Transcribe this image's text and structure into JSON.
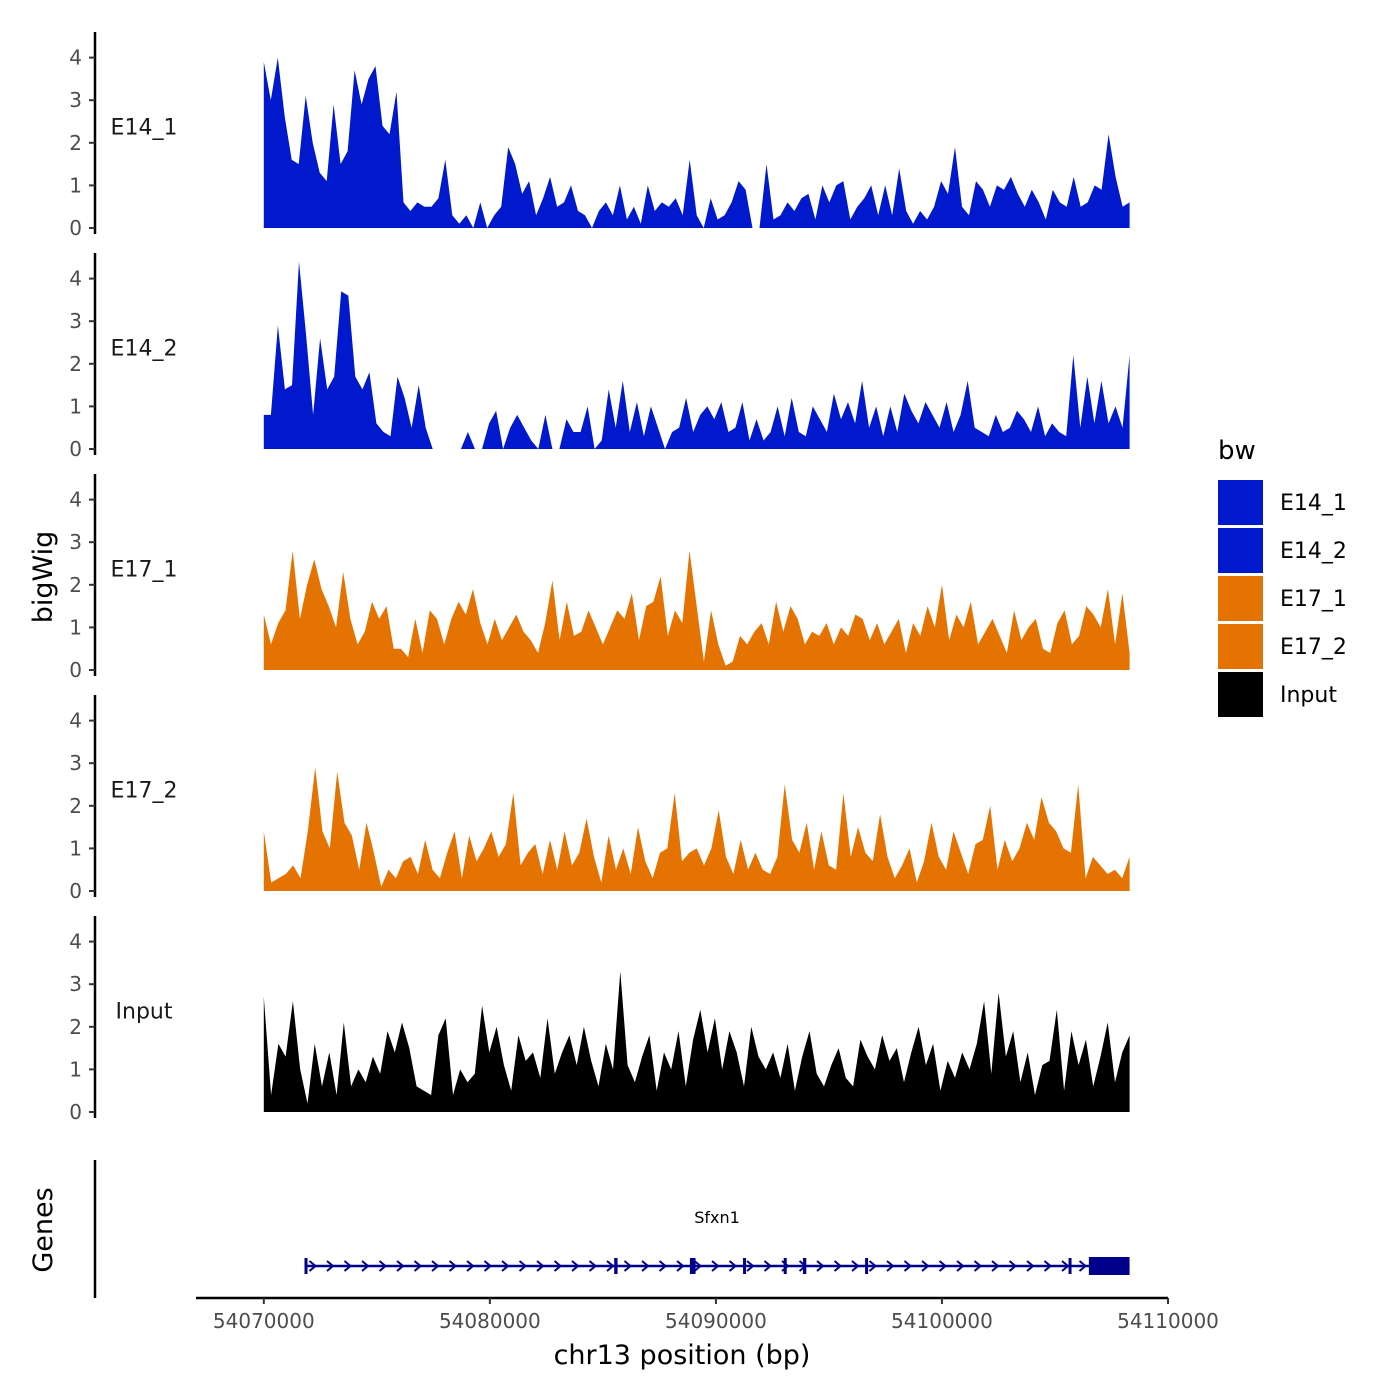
{
  "chart_data": {
    "type": "area",
    "title": "",
    "ylabel": "bigWig",
    "xlabel": "chr13 position (bp)",
    "gene_track_label": "Genes",
    "ylim": [
      0,
      4.5
    ],
    "y_ticks": [
      0,
      1,
      2,
      3,
      4
    ],
    "xlim": [
      54067000,
      54110000
    ],
    "x_ticks": [
      54070000,
      54080000,
      54090000,
      54100000,
      54110000
    ],
    "x_tick_labels": [
      "54070000",
      "54080000",
      "54090000",
      "54100000",
      "54110000"
    ],
    "legend": {
      "title": "bw",
      "position": "right",
      "entries": [
        {
          "label": "E14_1",
          "color": "#0019cc"
        },
        {
          "label": "E14_2",
          "color": "#0019cc"
        },
        {
          "label": "E17_1",
          "color": "#e57302"
        },
        {
          "label": "E17_2",
          "color": "#e57302"
        },
        {
          "label": "Input",
          "color": "#000000"
        }
      ]
    },
    "signal_range": [
      54070000,
      54108300
    ],
    "series": [
      {
        "name": "E14_1",
        "color": "#0019cc",
        "values": [
          3.9,
          3.0,
          4.0,
          2.6,
          1.6,
          1.5,
          3.1,
          2.0,
          1.3,
          1.1,
          2.9,
          1.5,
          1.8,
          3.7,
          2.9,
          3.5,
          3.8,
          2.4,
          2.2,
          3.2,
          0.6,
          0.4,
          0.6,
          0.5,
          0.5,
          0.7,
          1.6,
          0.3,
          0.1,
          0.3,
          0,
          0.6,
          0,
          0.3,
          0.5,
          1.9,
          1.5,
          0.8,
          1.1,
          0.3,
          0.7,
          1.2,
          0.5,
          0.6,
          1.0,
          0.4,
          0.3,
          0,
          0.4,
          0.6,
          0.3,
          1.0,
          0.2,
          0.5,
          0.1,
          1.0,
          0.4,
          0.6,
          0.5,
          0.7,
          0.3,
          1.6,
          0.3,
          0,
          0.7,
          0.2,
          0.3,
          0.6,
          1.1,
          0.9,
          0,
          0,
          1.5,
          0.2,
          0.3,
          0.6,
          0.4,
          0.7,
          0.8,
          0.2,
          1.0,
          0.6,
          1.0,
          1.1,
          0.2,
          0.5,
          0.7,
          1.0,
          0.3,
          1.0,
          0.3,
          1.4,
          0.4,
          0.1,
          0.4,
          0.2,
          0.5,
          1.1,
          0.8,
          1.9,
          0.5,
          0.3,
          1.1,
          0.9,
          0.5,
          1.0,
          0.9,
          1.2,
          0.8,
          0.5,
          0.9,
          0.6,
          0.2,
          0.9,
          0.6,
          0.5,
          1.2,
          0.5,
          0.6,
          1.0,
          0.9,
          2.2,
          1.2,
          0.5,
          0.6
        ]
      },
      {
        "name": "E14_2",
        "color": "#0019cc",
        "values": [
          0.8,
          0.8,
          2.9,
          1.4,
          1.5,
          4.4,
          2.7,
          0.8,
          2.6,
          1.4,
          1.7,
          3.7,
          3.6,
          1.7,
          1.4,
          1.8,
          0.6,
          0.4,
          0.3,
          1.7,
          1.2,
          0.5,
          1.5,
          0.5,
          0,
          0,
          0,
          0,
          0,
          0.4,
          0,
          0,
          0.6,
          0.9,
          0,
          0.5,
          0.8,
          0.5,
          0.2,
          0,
          0.8,
          0,
          0,
          0.7,
          0.4,
          0.4,
          1.0,
          0,
          0.2,
          1.4,
          0.5,
          1.6,
          0.4,
          1.1,
          0.3,
          1.0,
          0.5,
          0,
          0.4,
          0.5,
          1.2,
          0.4,
          0.8,
          1.0,
          0.7,
          1.1,
          0.4,
          0.5,
          1.1,
          0.2,
          0.7,
          0.2,
          0.4,
          1.0,
          0.3,
          1.2,
          0.4,
          0.3,
          1.0,
          0.7,
          0.4,
          1.3,
          0.7,
          1.1,
          0.6,
          1.6,
          0.5,
          1.0,
          0.3,
          1.0,
          0.4,
          1.3,
          0.9,
          0.6,
          1.1,
          0.8,
          0.5,
          1.1,
          0.4,
          0.8,
          1.6,
          0.5,
          0.4,
          0.3,
          0.8,
          0.4,
          0.5,
          0.9,
          0.7,
          0.4,
          1.0,
          0.3,
          0.6,
          0.4,
          0.3,
          2.2,
          0.5,
          1.7,
          0.6,
          1.6,
          0.6,
          1.0,
          0.5,
          2.2
        ]
      },
      {
        "name": "E17_1",
        "color": "#e57302",
        "values": [
          1.3,
          0.6,
          1.1,
          1.4,
          2.8,
          1.2,
          2.0,
          2.6,
          1.9,
          1.5,
          1.0,
          2.3,
          1.2,
          0.6,
          0.9,
          1.6,
          1.2,
          1.5,
          0.5,
          0.5,
          0.3,
          1.2,
          0.4,
          1.4,
          1.2,
          0.6,
          1.2,
          1.6,
          1.3,
          1.9,
          1.1,
          0.6,
          1.2,
          0.7,
          1.0,
          1.3,
          0.9,
          0.7,
          0.4,
          1.1,
          2.1,
          0.7,
          1.6,
          0.8,
          0.9,
          1.4,
          1.0,
          0.6,
          1.0,
          1.4,
          1.2,
          1.8,
          0.7,
          1.5,
          1.6,
          2.2,
          0.8,
          1.4,
          1.1,
          2.8,
          1.5,
          0.2,
          1.4,
          0.6,
          0.1,
          0.2,
          0.8,
          0.6,
          0.9,
          1.1,
          0.6,
          1.6,
          0.9,
          1.5,
          1.2,
          0.6,
          0.9,
          0.8,
          1.1,
          0.6,
          1.0,
          0.8,
          1.3,
          1.2,
          0.7,
          1.1,
          0.6,
          0.9,
          1.2,
          0.4,
          1.1,
          0.8,
          1.5,
          1.0,
          2.0,
          0.7,
          1.3,
          1.0,
          1.6,
          0.6,
          0.9,
          1.2,
          0.8,
          0.4,
          1.4,
          0.7,
          1.0,
          1.2,
          0.5,
          0.4,
          1.1,
          1.4,
          0.6,
          0.8,
          1.5,
          1.3,
          1.0,
          1.9,
          0.6,
          1.8,
          0.4
        ]
      },
      {
        "name": "E17_2",
        "color": "#e57302",
        "values": [
          1.4,
          0.2,
          0.3,
          0.4,
          0.6,
          0.3,
          1.4,
          2.9,
          1.4,
          1.0,
          2.8,
          1.6,
          1.3,
          0.5,
          1.6,
          0.9,
          0.1,
          0.5,
          0.3,
          0.7,
          0.8,
          0.4,
          1.2,
          0.5,
          0.3,
          0.9,
          1.4,
          0.3,
          1.3,
          0.7,
          1.0,
          1.4,
          0.8,
          1.1,
          2.3,
          0.6,
          0.9,
          1.1,
          0.4,
          1.2,
          0.5,
          1.4,
          0.6,
          0.9,
          1.7,
          0.8,
          0.2,
          1.3,
          0.5,
          1.0,
          0.4,
          1.5,
          0.7,
          0.3,
          0.9,
          1.0,
          2.3,
          0.7,
          0.9,
          1.0,
          0.6,
          1.0,
          1.9,
          0.8,
          0.4,
          1.2,
          0.5,
          0.9,
          0.5,
          0.4,
          0.8,
          2.5,
          1.2,
          0.9,
          1.6,
          0.5,
          1.4,
          0.6,
          0.5,
          2.3,
          0.8,
          1.5,
          0.9,
          0.7,
          1.8,
          0.8,
          0.3,
          0.6,
          1.0,
          0.2,
          0.7,
          1.6,
          0.8,
          0.5,
          1.4,
          0.9,
          0.4,
          1.1,
          1.2,
          2.0,
          0.5,
          1.2,
          0.7,
          1.0,
          1.6,
          1.2,
          2.2,
          1.6,
          1.4,
          1.0,
          0.9,
          2.5,
          0.3,
          0.8,
          0.6,
          0.4,
          0.5,
          0.3,
          0.8
        ]
      },
      {
        "name": "Input",
        "color": "#000000",
        "values": [
          2.7,
          0.4,
          1.6,
          1.3,
          2.6,
          1.0,
          0.2,
          1.6,
          0.6,
          1.4,
          0.4,
          2.1,
          0.6,
          1.0,
          0.7,
          1.3,
          0.9,
          1.9,
          1.4,
          2.1,
          1.5,
          0.6,
          0.5,
          0.4,
          1.8,
          2.2,
          0.4,
          1.0,
          0.7,
          0.9,
          2.5,
          1.4,
          2.0,
          1.1,
          0.5,
          1.8,
          1.2,
          1.4,
          0.8,
          2.2,
          0.9,
          1.4,
          1.8,
          1.1,
          2.0,
          1.2,
          0.6,
          1.6,
          1.0,
          3.3,
          1.1,
          0.7,
          1.3,
          1.8,
          0.5,
          1.4,
          1.0,
          1.9,
          0.6,
          1.7,
          2.4,
          1.4,
          2.2,
          1.0,
          1.9,
          1.4,
          0.6,
          2.0,
          1.3,
          1.0,
          1.4,
          0.8,
          1.6,
          0.5,
          1.3,
          1.9,
          0.9,
          0.6,
          1.1,
          1.5,
          0.8,
          0.6,
          1.7,
          1.3,
          1.0,
          1.8,
          1.2,
          1.5,
          0.7,
          1.4,
          2.0,
          1.1,
          1.6,
          0.5,
          1.2,
          0.8,
          1.4,
          1.0,
          1.6,
          2.6,
          0.9,
          2.8,
          1.3,
          1.9,
          0.7,
          1.4,
          0.4,
          1.1,
          1.2,
          2.4,
          0.5,
          1.9,
          1.1,
          1.7,
          0.6,
          1.3,
          2.1,
          0.7,
          1.4,
          1.8
        ]
      }
    ],
    "gene": {
      "name": "Sfxn1",
      "strand": "+",
      "color": "#00008b",
      "start": 54071800,
      "end": 54108300,
      "exons": [
        [
          54071800,
          54071900
        ],
        [
          54085500,
          54085650
        ],
        [
          54088850,
          54089100
        ],
        [
          54091200,
          54091300
        ],
        [
          54093000,
          54093100
        ],
        [
          54093850,
          54094000
        ],
        [
          54096600,
          54096700
        ],
        [
          54105600,
          54105700
        ],
        [
          54106500,
          54108300
        ]
      ]
    }
  }
}
